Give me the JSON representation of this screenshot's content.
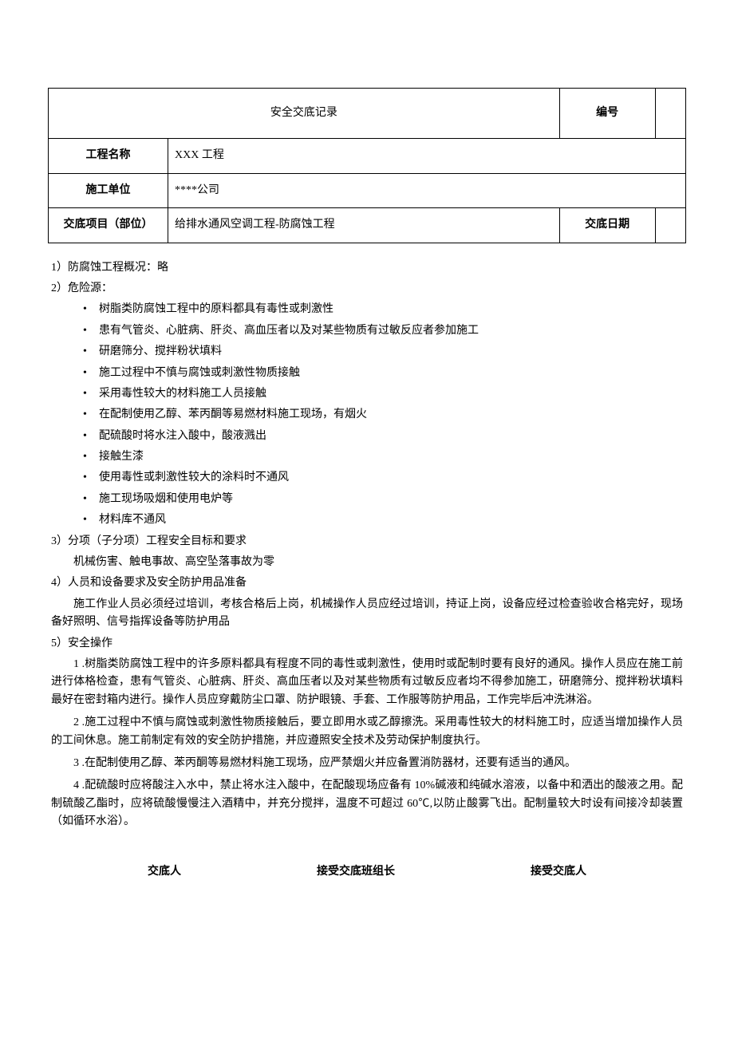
{
  "header": {
    "title": "安全交底记录",
    "labels": {
      "number": "编号",
      "project_name": "工程名称",
      "construction_unit": "施工单位",
      "disclosure_item": "交底项目（部位）",
      "disclosure_date": "交底日期"
    },
    "values": {
      "number": "",
      "project_name": "XXX 工程",
      "construction_unit": "****公司",
      "disclosure_item": "给排水通风空调工程-防腐蚀工程",
      "disclosure_date": ""
    }
  },
  "sections": {
    "s1": "1）防腐蚀工程概况：略",
    "s2": "2）危险源：",
    "hazards": [
      "树脂类防腐蚀工程中的原料都具有毒性或刺激性",
      "患有气管炎、心脏病、肝炎、高血压者以及对某些物质有过敏反应者参加施工",
      "研磨筛分、搅拌粉状填料",
      "施工过程中不慎与腐蚀或刺激性物质接触",
      "采用毒性较大的材料施工人员接触",
      "在配制使用乙醇、苯丙酮等易燃材料施工现场，有烟火",
      "配硫酸时将水注入酸中，酸液溅出",
      "接触生漆",
      "使用毒性或刺激性较大的涂料时不通风",
      "施工现场吸烟和使用电炉等",
      "材料库不通风"
    ],
    "s3": "3）分项（子分项）工程安全目标和要求",
    "s3_content": "机械伤害、触电事故、高空坠落事故为零",
    "s4": "4）人员和设备要求及安全防护用品准备",
    "s4_content": "施工作业人员必须经过培训，考核合格后上岗，机械操作人员应经过培训，持证上岗，设备应经过检查验收合格完好，现场备好照明、信号指挥设备等防护用品",
    "s5": "5）安全操作",
    "ops": [
      "1 .树脂类防腐蚀工程中的许多原料都具有程度不同的毒性或刺激性，使用时或配制时要有良好的通风。操作人员应在施工前进行体格检查，患有气管炎、心脏病、肝炎、高血压者以及对某些物质有过敏反应者均不得参加施工，研磨筛分、搅拌粉状填料最好在密封箱内进行。操作人员应穿戴防尘口罩、防护眼镜、手套、工作服等防护用品，工作完毕后冲洗淋浴。",
      "2 .施工过程中不慎与腐蚀或刺激性物质接触后，要立即用水或乙醇擦洗。采用毒性较大的材料施工时，应适当增加操作人员的工间休息。施工前制定有效的安全防护措施，并应遵照安全技术及劳动保护制度执行。",
      "3 .在配制使用乙醇、苯丙酮等易燃材料施工现场，应严禁烟火并应备置消防器材，还要有适当的通风。",
      "4 .配硫酸时应将酸注入水中，禁止将水注入酸中，在配酸现场应备有 10%碱液和纯碱水溶液，以备中和洒出的酸液之用。配制硫酸乙酯时，应将硫酸慢慢注入酒精中，并充分搅拌，温度不可超过 60℃,以防止酸雾飞出。配制量较大时设有间接冷却装置（如循环水浴）。"
    ]
  },
  "footer": {
    "presenter": "交底人",
    "team_leader": "接受交底班组长",
    "recipient": "接受交底人"
  }
}
